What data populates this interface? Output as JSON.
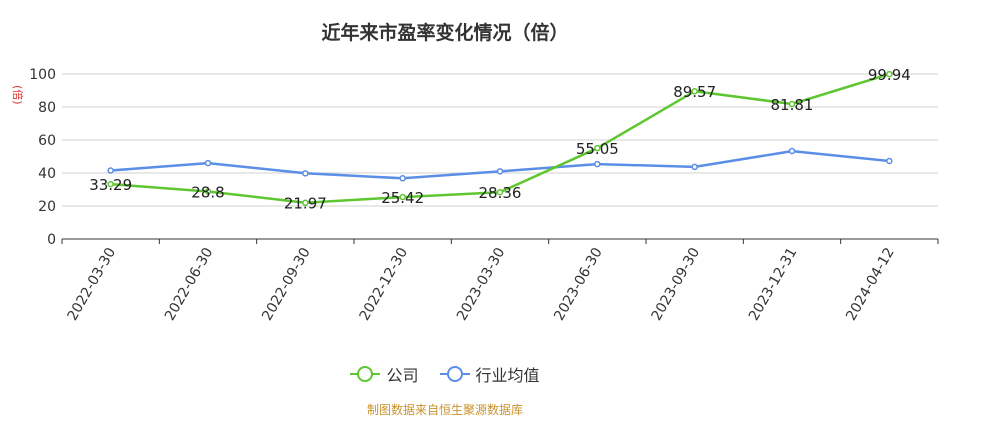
{
  "chart_data": {
    "type": "line",
    "title": "近年来市盈率变化情况（倍）",
    "ylabel": "(倍)",
    "ylim": [
      0,
      100
    ],
    "yticks": [
      0,
      20,
      40,
      60,
      80,
      100
    ],
    "categories": [
      "2022-03-30",
      "2022-06-30",
      "2022-09-30",
      "2022-12-30",
      "2023-03-30",
      "2023-06-30",
      "2023-09-30",
      "2023-12-31",
      "2024-04-12"
    ],
    "series": [
      {
        "name": "公司",
        "color": "#5ec630",
        "values": [
          33.29,
          28.8,
          21.97,
          25.42,
          28.36,
          55.05,
          89.57,
          81.81,
          99.94
        ],
        "labels": [
          "33.29",
          "28.8",
          "21.97",
          "25.42",
          "28.36",
          "55.05",
          "89.57",
          "81.81",
          "99.94"
        ]
      },
      {
        "name": "行业均值",
        "color": "#5b8ee6",
        "values": [
          41.5,
          46,
          39.8,
          36.8,
          41,
          45.4,
          43.7,
          53.3,
          47.3
        ]
      }
    ],
    "grid": true,
    "legend": "bottom"
  },
  "source": "制图数据来自恒生聚源数据库"
}
